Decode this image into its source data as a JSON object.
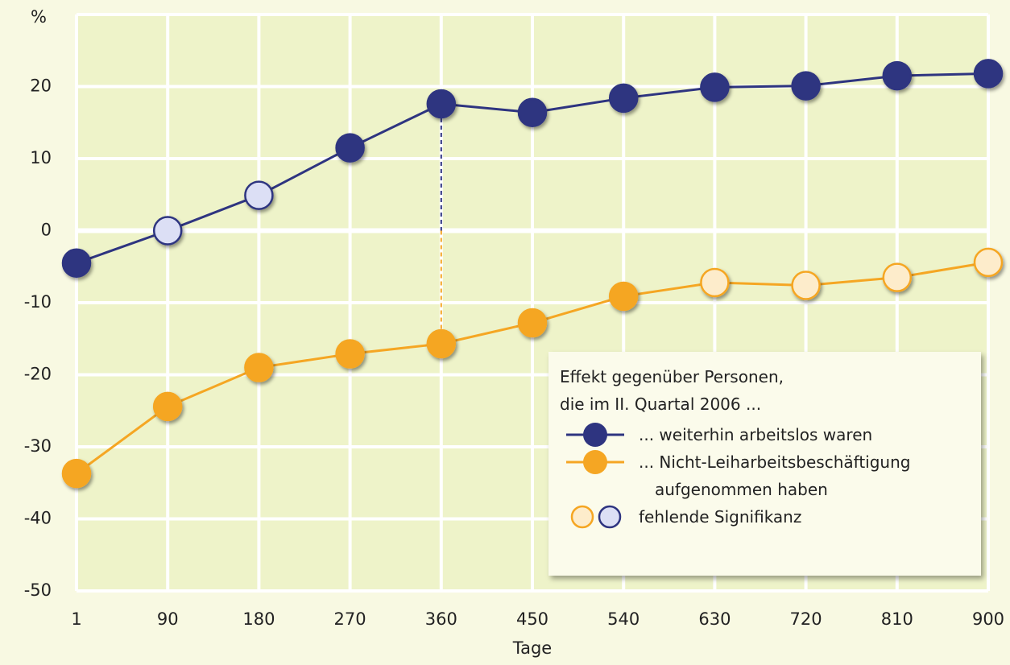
{
  "chart_data": {
    "type": "line",
    "y_unit": "%",
    "x_label": "Tage",
    "categories": [
      "1",
      "90",
      "180",
      "270",
      "360",
      "450",
      "540",
      "630",
      "720",
      "810",
      "900"
    ],
    "series": [
      {
        "name": "... weiterhin arbeitslos waren",
        "color": "#2e3480",
        "insignificant_color": "#dcdff5",
        "values": [
          -4.5,
          0,
          4.9,
          11.5,
          17.6,
          16.4,
          18.4,
          19.9,
          20.1,
          21.5,
          21.8
        ],
        "significant": [
          true,
          false,
          false,
          true,
          true,
          true,
          true,
          true,
          true,
          true,
          true
        ]
      },
      {
        "name": "... Nicht-Leiharbeitsbeschäftigung aufgenommen haben",
        "color": "#f5a623",
        "insignificant_color": "#fdeccb",
        "values": [
          -33.7,
          -24.4,
          -19.0,
          -17.1,
          -15.7,
          -12.8,
          -9.1,
          -7.2,
          -7.6,
          -6.5,
          -4.4
        ],
        "significant": [
          true,
          true,
          true,
          true,
          true,
          true,
          true,
          false,
          false,
          false,
          false
        ]
      }
    ],
    "ylim": [
      -50,
      30
    ],
    "yticks": [
      -50,
      -40,
      -30,
      -20,
      -10,
      0,
      10,
      20
    ],
    "grid": true,
    "legend_title": [
      "Effekt gegenüber Personen,",
      "die im II. Quartal 2006 ..."
    ],
    "legend_note": "fehlende Signifikanz"
  }
}
